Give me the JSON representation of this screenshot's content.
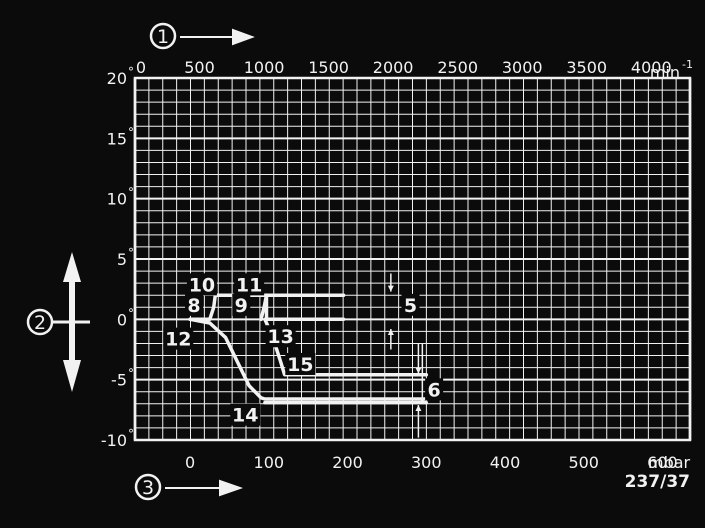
{
  "chart_data": {
    "type": "line",
    "colors": {
      "background": "#0b0b0b",
      "grid": "#f2f2f2",
      "text": "#f2f2f2"
    },
    "grid": true,
    "top_axis": {
      "unit": "min",
      "unit_exponent": "-1",
      "range": [
        0,
        4300
      ],
      "ticks": [
        {
          "value": 0,
          "label": "0"
        },
        {
          "value": 500,
          "label": "500"
        },
        {
          "value": 1000,
          "label": "1000"
        },
        {
          "value": 1500,
          "label": "1500"
        },
        {
          "value": 2000,
          "label": "2000"
        },
        {
          "value": 2500,
          "label": "2500"
        },
        {
          "value": 3000,
          "label": "3000"
        },
        {
          "value": 3500,
          "label": "3500"
        },
        {
          "value": 4000,
          "label": "4000"
        }
      ]
    },
    "bottom_axis": {
      "unit": "mbar",
      "range": [
        -70,
        635
      ],
      "ticks": [
        {
          "value": 0,
          "label": "0"
        },
        {
          "value": 100,
          "label": "100"
        },
        {
          "value": 200,
          "label": "200"
        },
        {
          "value": 300,
          "label": "300"
        },
        {
          "value": 400,
          "label": "400"
        },
        {
          "value": 500,
          "label": "500"
        },
        {
          "value": 600,
          "label": "600"
        }
      ]
    },
    "y_axis": {
      "range": [
        -10,
        20
      ],
      "ticks": [
        {
          "value": 20,
          "label": "20"
        },
        {
          "value": 15,
          "label": "15"
        },
        {
          "value": 10,
          "label": "10"
        },
        {
          "value": 5,
          "label": "5"
        },
        {
          "value": 0,
          "label": "0"
        },
        {
          "value": -5,
          "label": "-5"
        },
        {
          "value": -10,
          "label": "-10"
        }
      ],
      "degree_symbol": "°"
    },
    "axis_markers": [
      {
        "label": "1"
      },
      {
        "label": "2"
      },
      {
        "label": "3"
      }
    ],
    "series": [
      {
        "x": [
          0,
          25,
          45,
          60,
          75,
          90,
          95,
          300
        ],
        "y": [
          0,
          -0.3,
          -1.5,
          -3.5,
          -5.5,
          -6.5,
          -6.6,
          -6.6
        ]
      },
      {
        "x": [
          0,
          25,
          30,
          32,
          32,
          195
        ],
        "y": [
          0,
          0,
          1,
          2,
          2,
          2
        ]
      },
      {
        "x": [
          90,
          94,
          97,
          97,
          195
        ],
        "y": [
          0,
          1,
          2,
          0,
          0
        ]
      },
      {
        "x": [
          95,
          105,
          115,
          120,
          300
        ],
        "y": [
          0,
          -1.5,
          -3.5,
          -4.6,
          -4.6
        ]
      },
      {
        "x": [
          95,
          300
        ],
        "y": [
          -6.9,
          -6.9
        ]
      }
    ],
    "reference_markers": [
      {
        "x": 255,
        "y_from": 3.8,
        "y_to": 2.3
      },
      {
        "x": 255,
        "y_from": -2.5,
        "y_to": -0.8
      },
      {
        "x": 290,
        "y_from": -2,
        "y_to": -4.5
      },
      {
        "x": 290,
        "y_from": -9.8,
        "y_to": -7.1
      },
      {
        "x": 295,
        "y_from": -2,
        "y_to": -7
      }
    ],
    "annotations": [
      {
        "label": "10",
        "x": 15,
        "y": 2.9
      },
      {
        "label": "11",
        "x": 75,
        "y": 2.9
      },
      {
        "label": "8",
        "x": 5,
        "y": 1.2
      },
      {
        "label": "9",
        "x": 65,
        "y": 1.2
      },
      {
        "label": "12",
        "x": -15,
        "y": -1.6
      },
      {
        "label": "13",
        "x": 115,
        "y": -1.4
      },
      {
        "label": "15",
        "x": 140,
        "y": -3.7
      },
      {
        "label": "5",
        "x": 280,
        "y": 1.2
      },
      {
        "label": "6",
        "x": 310,
        "y": -5.8
      },
      {
        "label": "14",
        "x": 70,
        "y": -7.9
      }
    ],
    "figure_id": "237/37"
  }
}
